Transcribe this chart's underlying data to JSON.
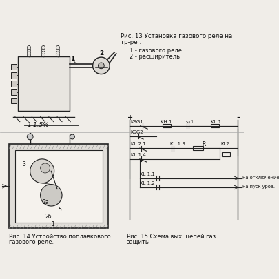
{
  "background_color": "#f0ede8",
  "fig_width": 4.05,
  "fig_height": 4.06,
  "dpi": 100,
  "title_fig13": "Рис. 13 Установка газового реле на\nтр-ре :",
  "legend_fig13": [
    "1 - газового реле",
    "2 - расширитель"
  ],
  "label_fig14_title": "Рис. 14 Устройство поплавкового\nгазового реле.",
  "label_fig15_title": "Рис. 15 Схема вых. цепей газ.\nзащиты",
  "text_slope": "1-1.5%",
  "line_color": "#222222",
  "light_gray": "#bbbbbb",
  "dark_gray": "#555555"
}
